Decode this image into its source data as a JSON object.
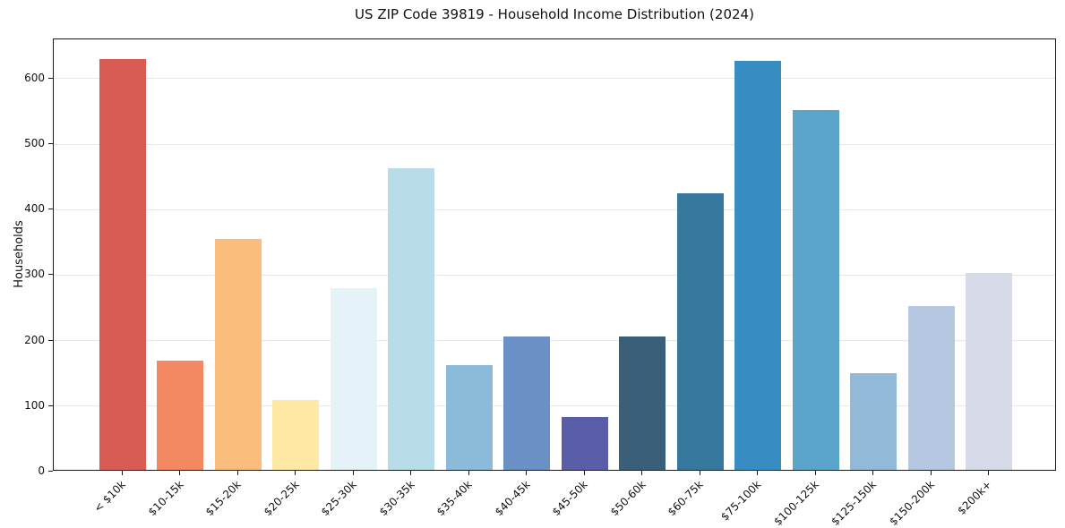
{
  "chart_data": {
    "type": "bar",
    "title": "US ZIP Code 39819 - Household Income Distribution (2024)",
    "xlabel": "",
    "ylabel": "Households",
    "categories": [
      "< $10k",
      "$10-15k",
      "$15-20k",
      "$20-25k",
      "$25-30k",
      "$30-35k",
      "$35-40k",
      "$40-45k",
      "$45-50k",
      "$50-60k",
      "$60-75k",
      "$75-100k",
      "$100-125k",
      "$125-150k",
      "$150-200k",
      "$200k+"
    ],
    "values": [
      627,
      167,
      352,
      107,
      277,
      460,
      160,
      204,
      81,
      203,
      422,
      624,
      549,
      148,
      250,
      301
    ],
    "bar_colors": [
      "#d85c53",
      "#f28963",
      "#fabd7e",
      "#fde8a4",
      "#e5f2f7",
      "#b8dcea",
      "#8cbada",
      "#6b90c6",
      "#5a5ea8",
      "#3a5f78",
      "#36789e",
      "#378cc2",
      "#5ba4ca",
      "#93b9d9",
      "#b5c7e1",
      "#d7dae8"
    ],
    "yticks": [
      0,
      100,
      200,
      300,
      400,
      500,
      600
    ],
    "ylim": [
      0,
      660
    ],
    "grid": "horizontal",
    "gridline_color": "#e8e8e8",
    "axis_color": "#1a1a1a",
    "background": "#ffffff",
    "legend": "none",
    "x_tick_label_rotation_deg": 45
  }
}
